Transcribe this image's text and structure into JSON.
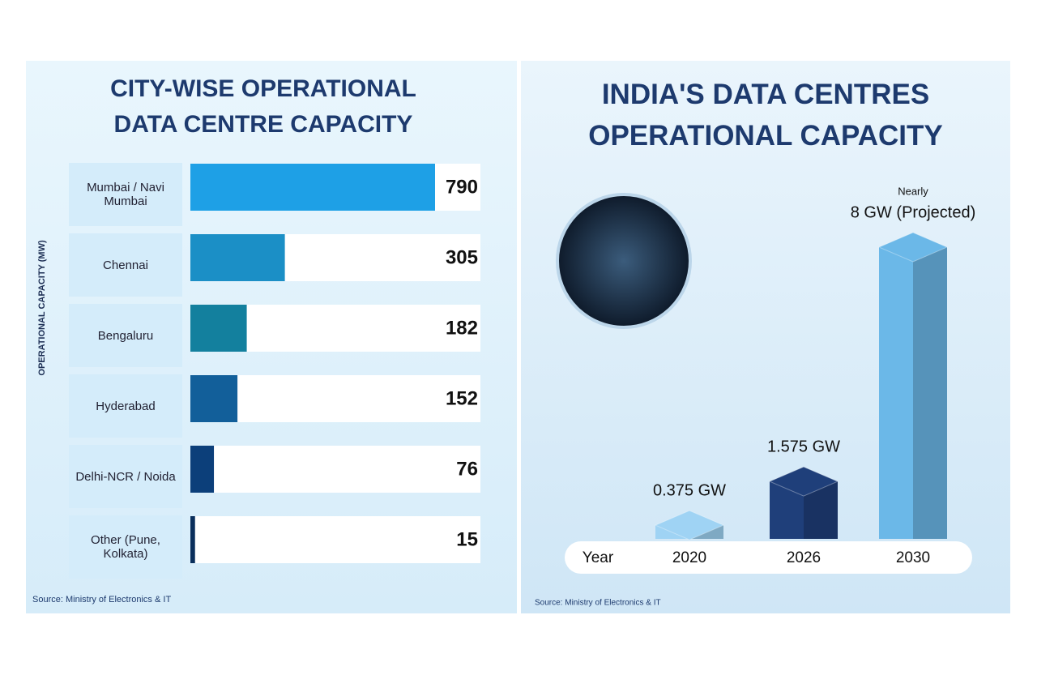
{
  "chart_data": [
    {
      "type": "hbar",
      "title": "CITY-WISE OPERATIONAL DATA CENTRE CAPACITY",
      "ylabel": "OPERATIONAL CAPACITY (MW)",
      "categories": [
        "Mumbai / Navi Mumbai",
        "Chennai",
        "Bengaluru",
        "Hyderabad",
        "Delhi-NCR / Noida",
        "Other (Pune, Kolkata)"
      ],
      "values": [
        790,
        305,
        182,
        152,
        76,
        15
      ],
      "colors": [
        "#1ea0e6",
        "#1b8fc6",
        "#13809e",
        "#125f9a",
        "#0c3f7a",
        "#0a2f5c"
      ],
      "source": "Source: Ministry of Electronics & IT"
    },
    {
      "type": "bar3d",
      "title": "INDIA'S DATA CENTRES OPERATIONAL CAPACITY",
      "xlabel": "Year",
      "categories": [
        "2020",
        "2026",
        "2030"
      ],
      "values": [
        0.375,
        1.575,
        8
      ],
      "value_labels": [
        "0.375 GW",
        "1.575 GW",
        "8 GW (Projected)"
      ],
      "annotation": "Nearly",
      "colors": [
        "#9fd3f4",
        "#1f3f7a",
        "#6bb8e8"
      ],
      "source": "Source: Ministry of Electronics & IT"
    }
  ]
}
